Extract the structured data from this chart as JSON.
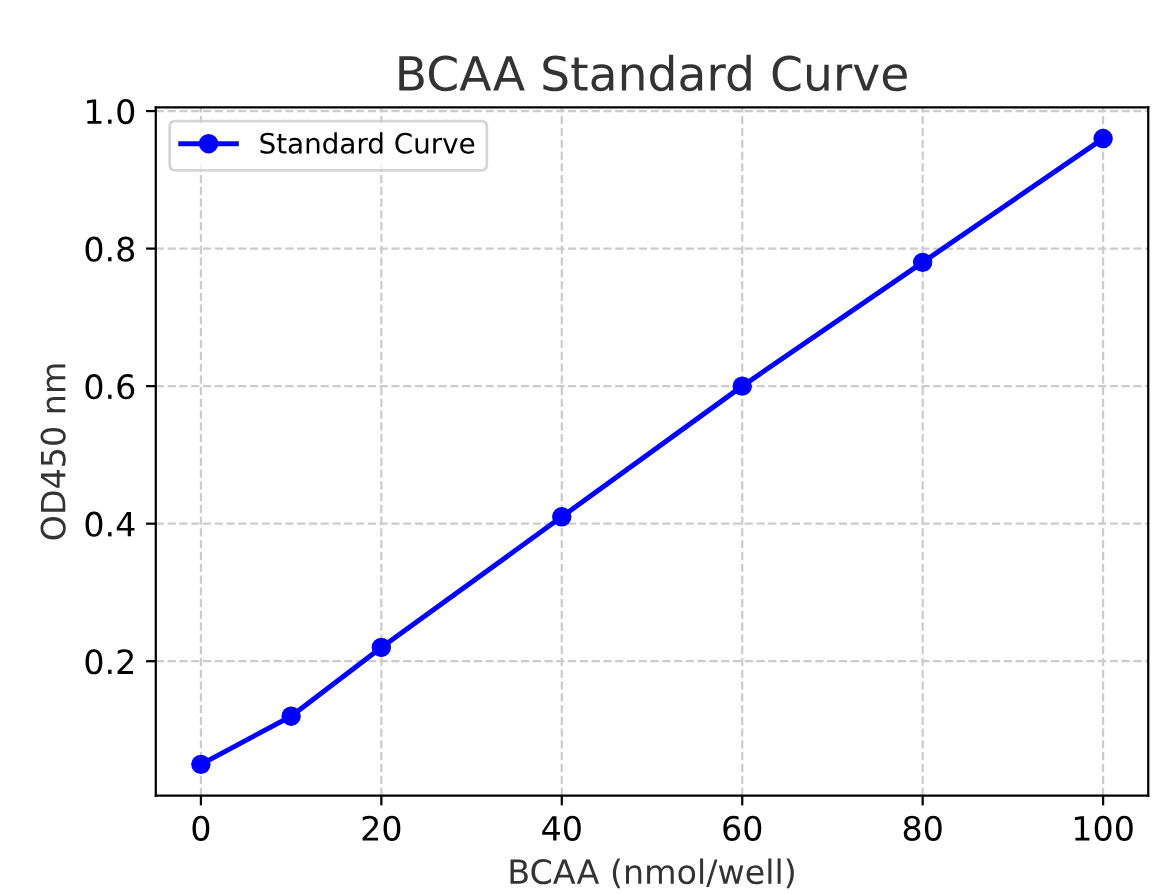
{
  "chart_data": {
    "type": "line",
    "title": "BCAA Standard Curve",
    "xlabel": "BCAA (nmol/well)",
    "ylabel": "OD450 nm",
    "x": [
      0,
      10,
      20,
      40,
      60,
      80,
      100
    ],
    "series": [
      {
        "name": "Standard Curve",
        "color": "#0000ff",
        "values": [
          0.05,
          0.12,
          0.22,
          0.41,
          0.6,
          0.78,
          0.96
        ]
      }
    ],
    "xlim": [
      -5,
      105
    ],
    "xticks": [
      0,
      20,
      40,
      60,
      80,
      100
    ],
    "ylim": [
      0.0045,
      1.0055
    ],
    "yticks": [
      0.2,
      0.4,
      0.6,
      0.8,
      {
        "value": 1,
        "label": "1.0"
      }
    ],
    "grid": true,
    "legend": "top left",
    "marker": "circle",
    "line_style": "solid"
  }
}
